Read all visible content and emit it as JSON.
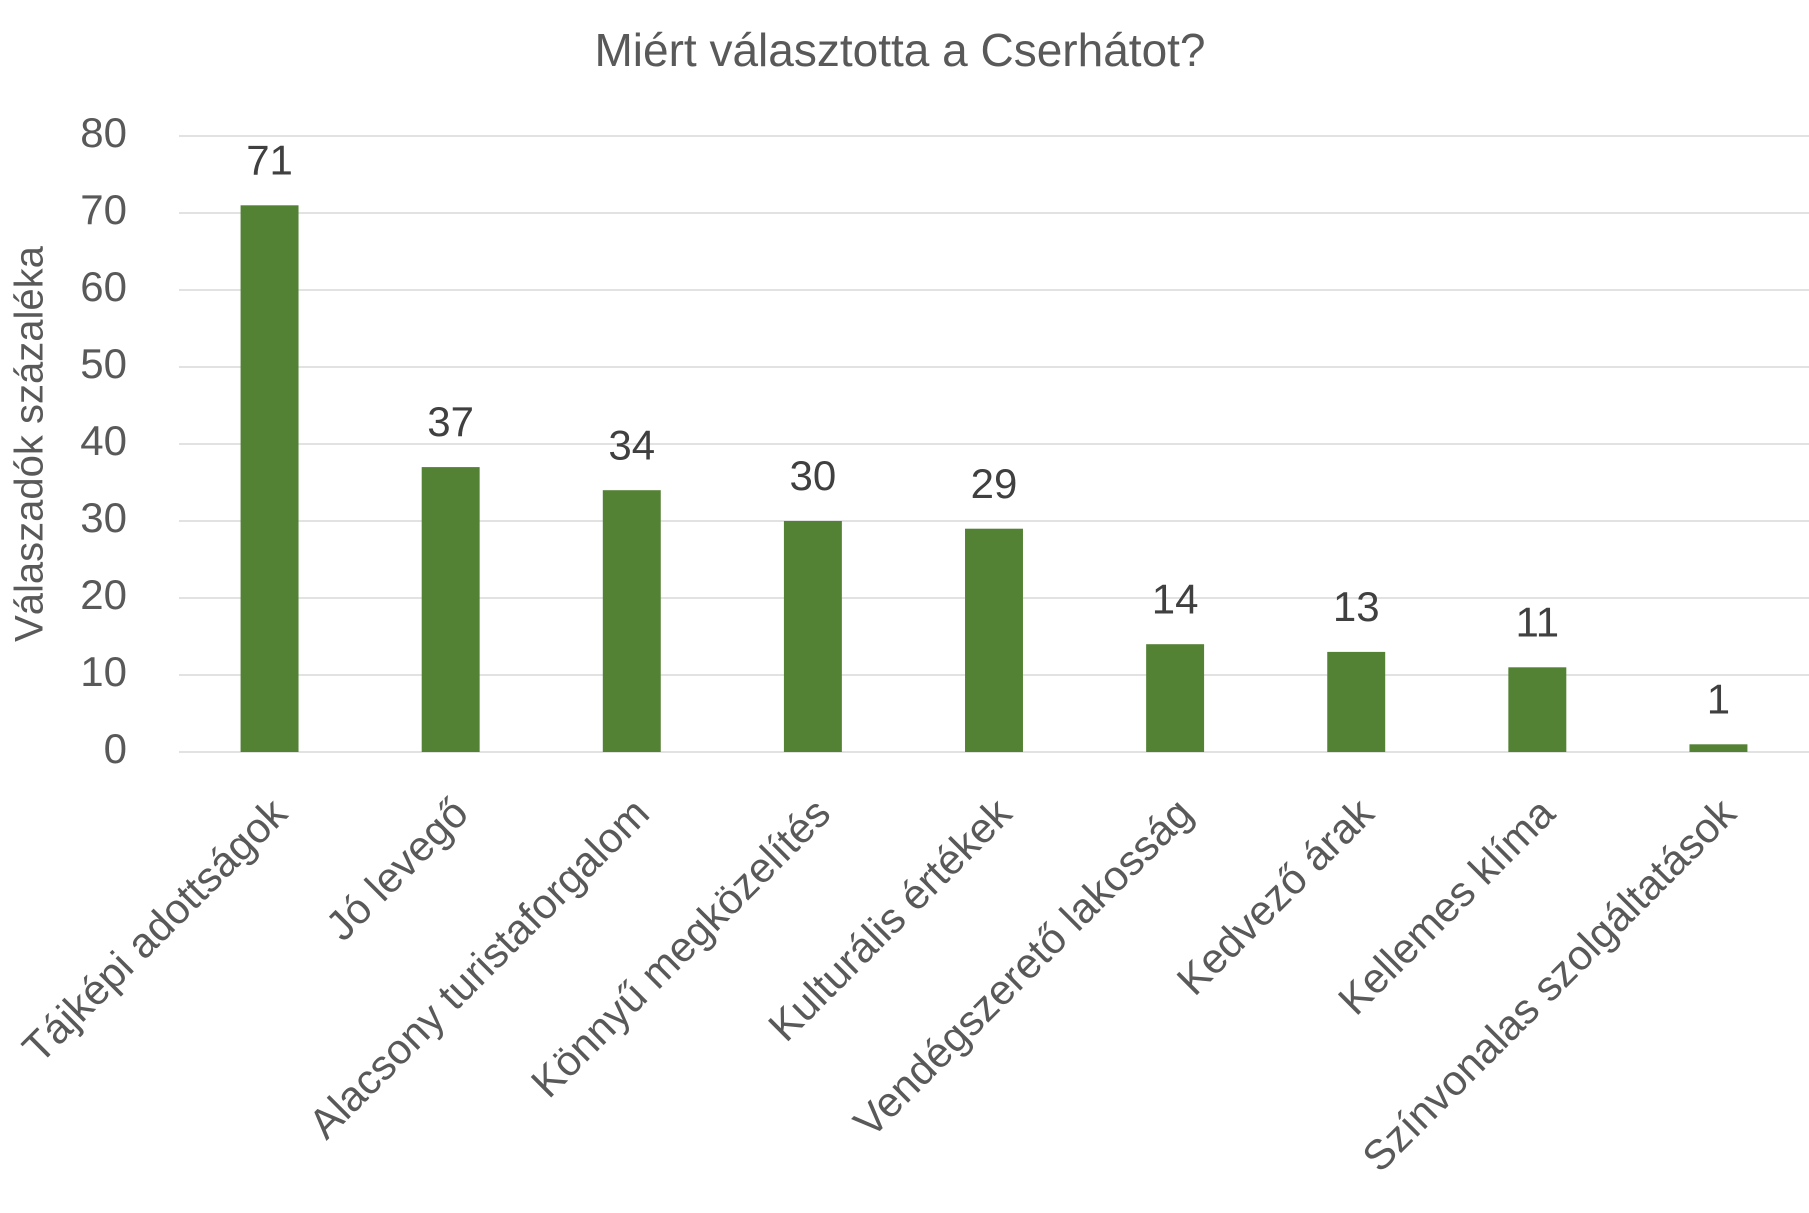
{
  "chart_data": {
    "type": "bar",
    "title": "Miért választotta a Cserhátot?",
    "y_label": "Válaszadók százaléka",
    "categories": [
      "Tájképi adottságok",
      "Jó levegő",
      "Alacsony turistaforgalom",
      "Könnyű megközelítés",
      "Kulturális értékek",
      "Vendégszerető lakosság",
      "Kedvező árak",
      "Kellemes klíma",
      "Színvonalas szolgáltatások"
    ],
    "values": [
      71,
      37,
      34,
      30,
      29,
      14,
      13,
      11,
      1
    ],
    "color": "#548235",
    "ylim": [
      0,
      80
    ],
    "yticks": [
      0,
      10,
      20,
      30,
      40,
      50,
      60,
      70,
      80
    ],
    "grid": true
  }
}
